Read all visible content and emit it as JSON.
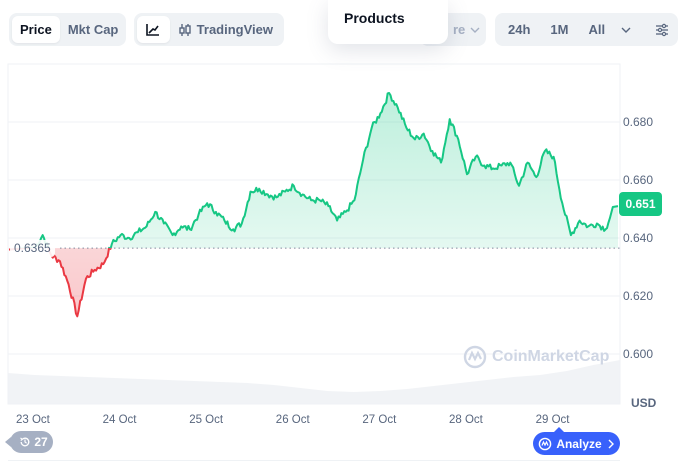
{
  "toolbar": {
    "type_options": [
      {
        "label": "Price",
        "active": true
      },
      {
        "label": "Mkt Cap",
        "active": false
      }
    ],
    "view_options": [
      {
        "icon": "line-chart-icon",
        "label": "",
        "active": true
      },
      {
        "icon": "candlestick-icon",
        "label": "TradingView",
        "active": false
      }
    ],
    "compare_partial_label": "re",
    "range_options": [
      {
        "label": "24h"
      },
      {
        "label": "1M"
      },
      {
        "label": "All"
      }
    ],
    "range_dropdown_icon": "chevron-down-icon",
    "settings_icon": "sliders-icon"
  },
  "dropdown": {
    "items": [
      "Products"
    ]
  },
  "chart": {
    "current_price_label": "0.651",
    "reference_price_label": "0.6365",
    "watermark": "CoinMarketCap",
    "currency_label": "USD",
    "history_count": "27",
    "analyze_label": "Analyze",
    "colors": {
      "up": "#16c784",
      "down": "#ea3943",
      "accent": "#3861fb",
      "grid": "#eff2f5",
      "axis_text": "#58667e"
    }
  },
  "chart_data": {
    "type": "area",
    "title": "",
    "xlabel": "",
    "ylabel": "USD",
    "ylim": [
      0.591,
      0.697
    ],
    "grid": true,
    "legend_position": "none",
    "y_ticks": [
      0.6,
      0.62,
      0.64,
      0.66,
      0.68
    ],
    "y_tick_labels": [
      "0.600",
      "0.620",
      "0.640",
      "0.660",
      "0.680"
    ],
    "x_tick_labels": [
      "23 Oct",
      "24 Oct",
      "25 Oct",
      "26 Oct",
      "27 Oct",
      "28 Oct",
      "29 Oct"
    ],
    "reference_line": 0.6365,
    "current_value": 0.651,
    "series": [
      {
        "name": "Price",
        "x": [
          0,
          0.1,
          0.2,
          0.3,
          0.4,
          0.5,
          0.6,
          0.7,
          0.8,
          0.9,
          1.0,
          1.1,
          1.2,
          1.3,
          1.4,
          1.5,
          1.6,
          1.7,
          1.8,
          1.9,
          2.0,
          2.1,
          2.2,
          2.3,
          2.4,
          2.5,
          2.6,
          2.7,
          2.8,
          2.9,
          3.0,
          3.1,
          3.2,
          3.3,
          3.4,
          3.5,
          3.6,
          3.7,
          3.8,
          3.9,
          4.0,
          4.1,
          4.2,
          4.3,
          4.4,
          4.5,
          4.6,
          4.7,
          4.8,
          4.9,
          5.0,
          5.1,
          5.2,
          5.3,
          5.4,
          5.5,
          5.6,
          5.7,
          5.8,
          5.9,
          6.0,
          6.1,
          6.2,
          6.3,
          6.4,
          6.5,
          6.6,
          6.7
        ],
        "values": [
          0.636,
          0.641,
          0.634,
          0.632,
          0.624,
          0.613,
          0.626,
          0.629,
          0.631,
          0.638,
          0.641,
          0.64,
          0.642,
          0.644,
          0.649,
          0.645,
          0.641,
          0.644,
          0.643,
          0.648,
          0.652,
          0.649,
          0.646,
          0.643,
          0.645,
          0.656,
          0.657,
          0.655,
          0.654,
          0.656,
          0.658,
          0.655,
          0.653,
          0.653,
          0.651,
          0.646,
          0.649,
          0.653,
          0.667,
          0.678,
          0.683,
          0.69,
          0.685,
          0.678,
          0.674,
          0.676,
          0.67,
          0.666,
          0.681,
          0.674,
          0.662,
          0.668,
          0.665,
          0.664,
          0.665,
          0.666,
          0.658,
          0.666,
          0.661,
          0.67,
          0.668,
          0.652,
          0.641,
          0.646,
          0.644,
          0.645,
          0.643,
          0.651
        ]
      }
    ],
    "volume_area": true
  }
}
